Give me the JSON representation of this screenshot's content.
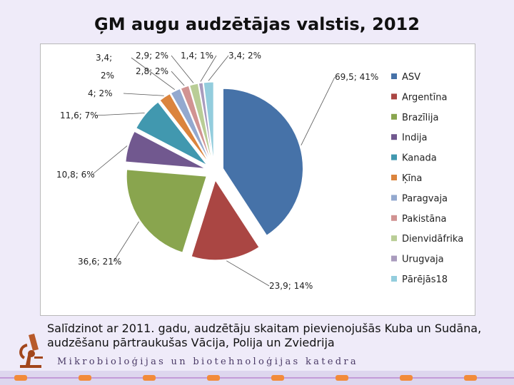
{
  "title": "ĢM augu audzētājas valstis, 2012",
  "note": "Salīdzinot ar 2011. gadu, audzētāju skaitam pievienojušās Kuba un Sudāna, audzēšanu pārtraukušas Vācija, Polija un Zviedrija",
  "footer": "Mikrobioloģijas un biotehnoloģijas katedra",
  "chart_data": {
    "type": "pie",
    "title": "ĢM augu audzētājas valstis, 2012",
    "legend_position": "right",
    "slices": [
      {
        "name": "ASV",
        "value": 69.5,
        "label": "69,5; 41%",
        "color": "#4672a8"
      },
      {
        "name": "Argentīna",
        "value": 23.9,
        "label": "23,9; 14%",
        "color": "#aa4643"
      },
      {
        "name": "Brazīlija",
        "value": 36.6,
        "label": "36,6; 21%",
        "color": "#89a54e"
      },
      {
        "name": "Indija",
        "value": 10.8,
        "label": "10,8; 6%",
        "color": "#71588f"
      },
      {
        "name": "Kanada",
        "value": 11.6,
        "label": "11,6; 7%",
        "color": "#4198af"
      },
      {
        "name": "Ķīna",
        "value": 4.0,
        "label": "4; 2%",
        "color": "#db843d"
      },
      {
        "name": "Paragvaja",
        "value": 3.4,
        "label": "3,4; 2%",
        "color": "#93a9cf"
      },
      {
        "name": "Pakistāna",
        "value": 2.8,
        "label": "2,8; 2%",
        "color": "#d19392"
      },
      {
        "name": "Dienvidāfrika",
        "value": 2.9,
        "label": "2,9; 2%",
        "color": "#b9cd96"
      },
      {
        "name": "Urugvaja",
        "value": 1.4,
        "label": "1,4; 1%",
        "color": "#a99bbd"
      },
      {
        "name": "Pārējās18",
        "value": 3.4,
        "label": "3,4; 2%",
        "color": "#93cddd"
      }
    ]
  }
}
